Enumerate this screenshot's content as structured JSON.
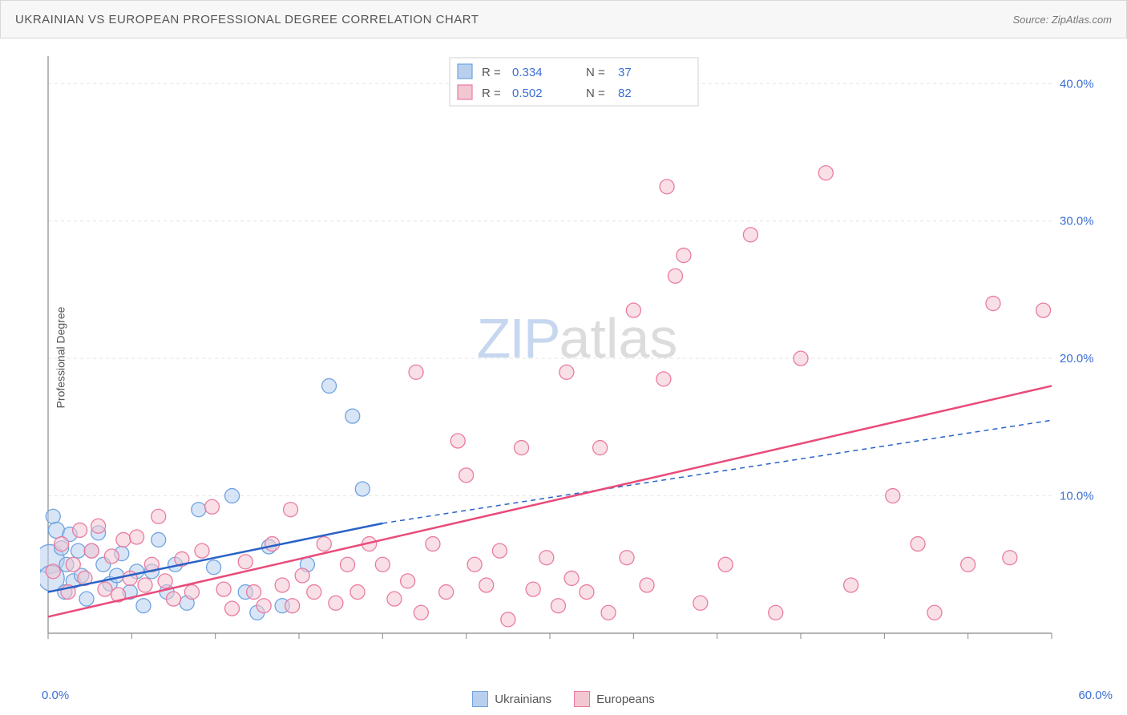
{
  "header": {
    "title": "UKRAINIAN VS EUROPEAN PROFESSIONAL DEGREE CORRELATION CHART",
    "source": "Source: ZipAtlas.com"
  },
  "chart": {
    "type": "scatter",
    "ylabel": "Professional Degree",
    "x_min_label": "0.0%",
    "x_max_label": "60.0%",
    "xlim": [
      0,
      60
    ],
    "ylim": [
      0,
      42
    ],
    "y_ticks": [
      {
        "v": 10,
        "label": "10.0%"
      },
      {
        "v": 20,
        "label": "20.0%"
      },
      {
        "v": 30,
        "label": "30.0%"
      },
      {
        "v": 40,
        "label": "40.0%"
      }
    ],
    "x_ticks_minor": [
      0,
      5,
      10,
      15,
      20,
      25,
      30,
      35,
      40,
      45,
      50,
      55,
      60
    ],
    "grid_color": "#e4e4e4",
    "axis_color": "#888",
    "plot_bg": "#ffffff",
    "tick_label_color": "#3b6fd4",
    "watermark": {
      "zip": "ZIP",
      "atlas": "atlas"
    },
    "series": [
      {
        "name": "Ukrainians",
        "fill": "#b8d0ee",
        "stroke": "#6fa3e0",
        "fill_opacity": 0.55,
        "marker_r": 9,
        "trend": {
          "color": "#2962c6",
          "width": 2.5,
          "dash": "",
          "x0": 0,
          "y0": 3.0,
          "x1": 20,
          "y1": 8.0,
          "dash_ext": {
            "x1": 60,
            "y1": 15.5
          }
        },
        "points": [
          [
            0.1,
            5.4,
            18
          ],
          [
            0.2,
            4.0,
            16
          ],
          [
            0.3,
            8.5,
            9
          ],
          [
            0.5,
            7.5,
            10
          ],
          [
            0.8,
            6.2,
            9
          ],
          [
            1.0,
            3.0,
            9
          ],
          [
            1.1,
            5.0,
            9
          ],
          [
            1.3,
            7.2,
            9
          ],
          [
            1.5,
            3.8,
            9
          ],
          [
            1.8,
            6.0,
            9
          ],
          [
            2.0,
            4.2,
            9
          ],
          [
            2.3,
            2.5,
            9
          ],
          [
            2.6,
            6.0,
            9
          ],
          [
            3.0,
            7.3,
            9
          ],
          [
            3.3,
            5.0,
            9
          ],
          [
            3.7,
            3.6,
            9
          ],
          [
            4.1,
            4.2,
            9
          ],
          [
            4.4,
            5.8,
            9
          ],
          [
            4.9,
            3.0,
            9
          ],
          [
            5.3,
            4.5,
            9
          ],
          [
            5.7,
            2.0,
            9
          ],
          [
            6.2,
            4.5,
            9
          ],
          [
            6.6,
            6.8,
            9
          ],
          [
            7.1,
            3.0,
            9
          ],
          [
            7.6,
            5.0,
            9
          ],
          [
            8.3,
            2.2,
            9
          ],
          [
            9.0,
            9.0,
            9
          ],
          [
            9.9,
            4.8,
            9
          ],
          [
            11.0,
            10.0,
            9
          ],
          [
            11.8,
            3.0,
            9
          ],
          [
            12.5,
            1.5,
            9
          ],
          [
            13.2,
            6.3,
            9
          ],
          [
            14.0,
            2.0,
            9
          ],
          [
            15.5,
            5.0,
            9
          ],
          [
            16.8,
            18.0,
            9
          ],
          [
            18.2,
            15.8,
            9
          ],
          [
            18.8,
            10.5,
            9
          ]
        ]
      },
      {
        "name": "Europeans",
        "fill": "#f3c7d2",
        "stroke": "#ea7ba0",
        "fill_opacity": 0.55,
        "marker_r": 9,
        "trend": {
          "color": "#e94b7a",
          "width": 2.5,
          "dash": "",
          "x0": 0,
          "y0": 1.2,
          "x1": 60,
          "y1": 18.0
        },
        "points": [
          [
            0.3,
            4.5,
            9
          ],
          [
            0.8,
            6.5,
            9
          ],
          [
            1.2,
            3.0,
            9
          ],
          [
            1.5,
            5.0,
            9
          ],
          [
            1.9,
            7.5,
            9
          ],
          [
            2.2,
            4.0,
            9
          ],
          [
            2.6,
            6.0,
            9
          ],
          [
            3.0,
            7.8,
            9
          ],
          [
            3.4,
            3.2,
            9
          ],
          [
            3.8,
            5.6,
            9
          ],
          [
            4.2,
            2.8,
            9
          ],
          [
            4.5,
            6.8,
            9
          ],
          [
            4.9,
            4.0,
            9
          ],
          [
            5.3,
            7.0,
            9
          ],
          [
            5.8,
            3.5,
            9
          ],
          [
            6.2,
            5.0,
            9
          ],
          [
            6.6,
            8.5,
            9
          ],
          [
            7.0,
            3.8,
            9
          ],
          [
            7.5,
            2.5,
            9
          ],
          [
            8.0,
            5.4,
            9
          ],
          [
            8.6,
            3.0,
            9
          ],
          [
            9.2,
            6.0,
            9
          ],
          [
            9.8,
            9.2,
            9
          ],
          [
            10.5,
            3.2,
            9
          ],
          [
            11.0,
            1.8,
            9
          ],
          [
            11.8,
            5.2,
            9
          ],
          [
            12.3,
            3.0,
            9
          ],
          [
            12.9,
            2.0,
            9
          ],
          [
            13.4,
            6.5,
            9
          ],
          [
            14.0,
            3.5,
            9
          ],
          [
            14.6,
            2.0,
            9
          ],
          [
            15.2,
            4.2,
            9
          ],
          [
            15.9,
            3.0,
            9
          ],
          [
            16.5,
            6.5,
            9
          ],
          [
            17.2,
            2.2,
            9
          ],
          [
            17.9,
            5.0,
            9
          ],
          [
            18.5,
            3.0,
            9
          ],
          [
            19.2,
            6.5,
            9
          ],
          [
            20.0,
            5.0,
            9
          ],
          [
            20.7,
            2.5,
            9
          ],
          [
            21.5,
            3.8,
            9
          ],
          [
            22.0,
            19.0,
            9
          ],
          [
            22.3,
            1.5,
            9
          ],
          [
            23.0,
            6.5,
            9
          ],
          [
            23.8,
            3.0,
            9
          ],
          [
            24.5,
            14.0,
            9
          ],
          [
            25.0,
            11.5,
            9
          ],
          [
            25.5,
            5.0,
            9
          ],
          [
            26.2,
            3.5,
            9
          ],
          [
            27.0,
            6.0,
            9
          ],
          [
            27.5,
            1.0,
            9
          ],
          [
            28.3,
            13.5,
            9
          ],
          [
            29.0,
            3.2,
            9
          ],
          [
            29.8,
            5.5,
            9
          ],
          [
            30.5,
            2.0,
            9
          ],
          [
            31.0,
            19.0,
            9
          ],
          [
            31.3,
            4.0,
            9
          ],
          [
            32.2,
            3.0,
            9
          ],
          [
            33.0,
            13.5,
            9
          ],
          [
            33.5,
            1.5,
            9
          ],
          [
            34.6,
            5.5,
            9
          ],
          [
            35.0,
            23.5,
            9
          ],
          [
            35.8,
            3.5,
            9
          ],
          [
            36.8,
            18.5,
            9
          ],
          [
            37.0,
            32.5,
            9
          ],
          [
            37.5,
            26.0,
            9
          ],
          [
            38.0,
            27.5,
            9
          ],
          [
            39.0,
            2.2,
            9
          ],
          [
            40.5,
            5.0,
            9
          ],
          [
            42.0,
            29.0,
            9
          ],
          [
            43.5,
            1.5,
            9
          ],
          [
            45.0,
            20.0,
            9
          ],
          [
            46.5,
            33.5,
            9
          ],
          [
            48.0,
            3.5,
            9
          ],
          [
            50.5,
            10.0,
            9
          ],
          [
            52.0,
            6.5,
            9
          ],
          [
            53.0,
            1.5,
            9
          ],
          [
            55.0,
            5.0,
            9
          ],
          [
            56.5,
            24.0,
            9
          ],
          [
            57.5,
            5.5,
            9
          ],
          [
            59.5,
            23.5,
            9
          ],
          [
            14.5,
            9.0,
            9
          ]
        ]
      }
    ],
    "legend_top": {
      "border": "#d0d0d0",
      "bg": "#ffffff",
      "label_color": "#555",
      "value_color": "#3b6fd4",
      "rows": [
        {
          "fill": "#b8d0ee",
          "stroke": "#6fa3e0",
          "r": "0.334",
          "n": "37"
        },
        {
          "fill": "#f3c7d2",
          "stroke": "#ea7ba0",
          "r": "0.502",
          "n": "82"
        }
      ]
    },
    "bottom_legend": [
      {
        "fill": "#b8d0ee",
        "stroke": "#6fa3e0",
        "label": "Ukrainians"
      },
      {
        "fill": "#f3c7d2",
        "stroke": "#ea7ba0",
        "label": "Europeans"
      }
    ]
  }
}
